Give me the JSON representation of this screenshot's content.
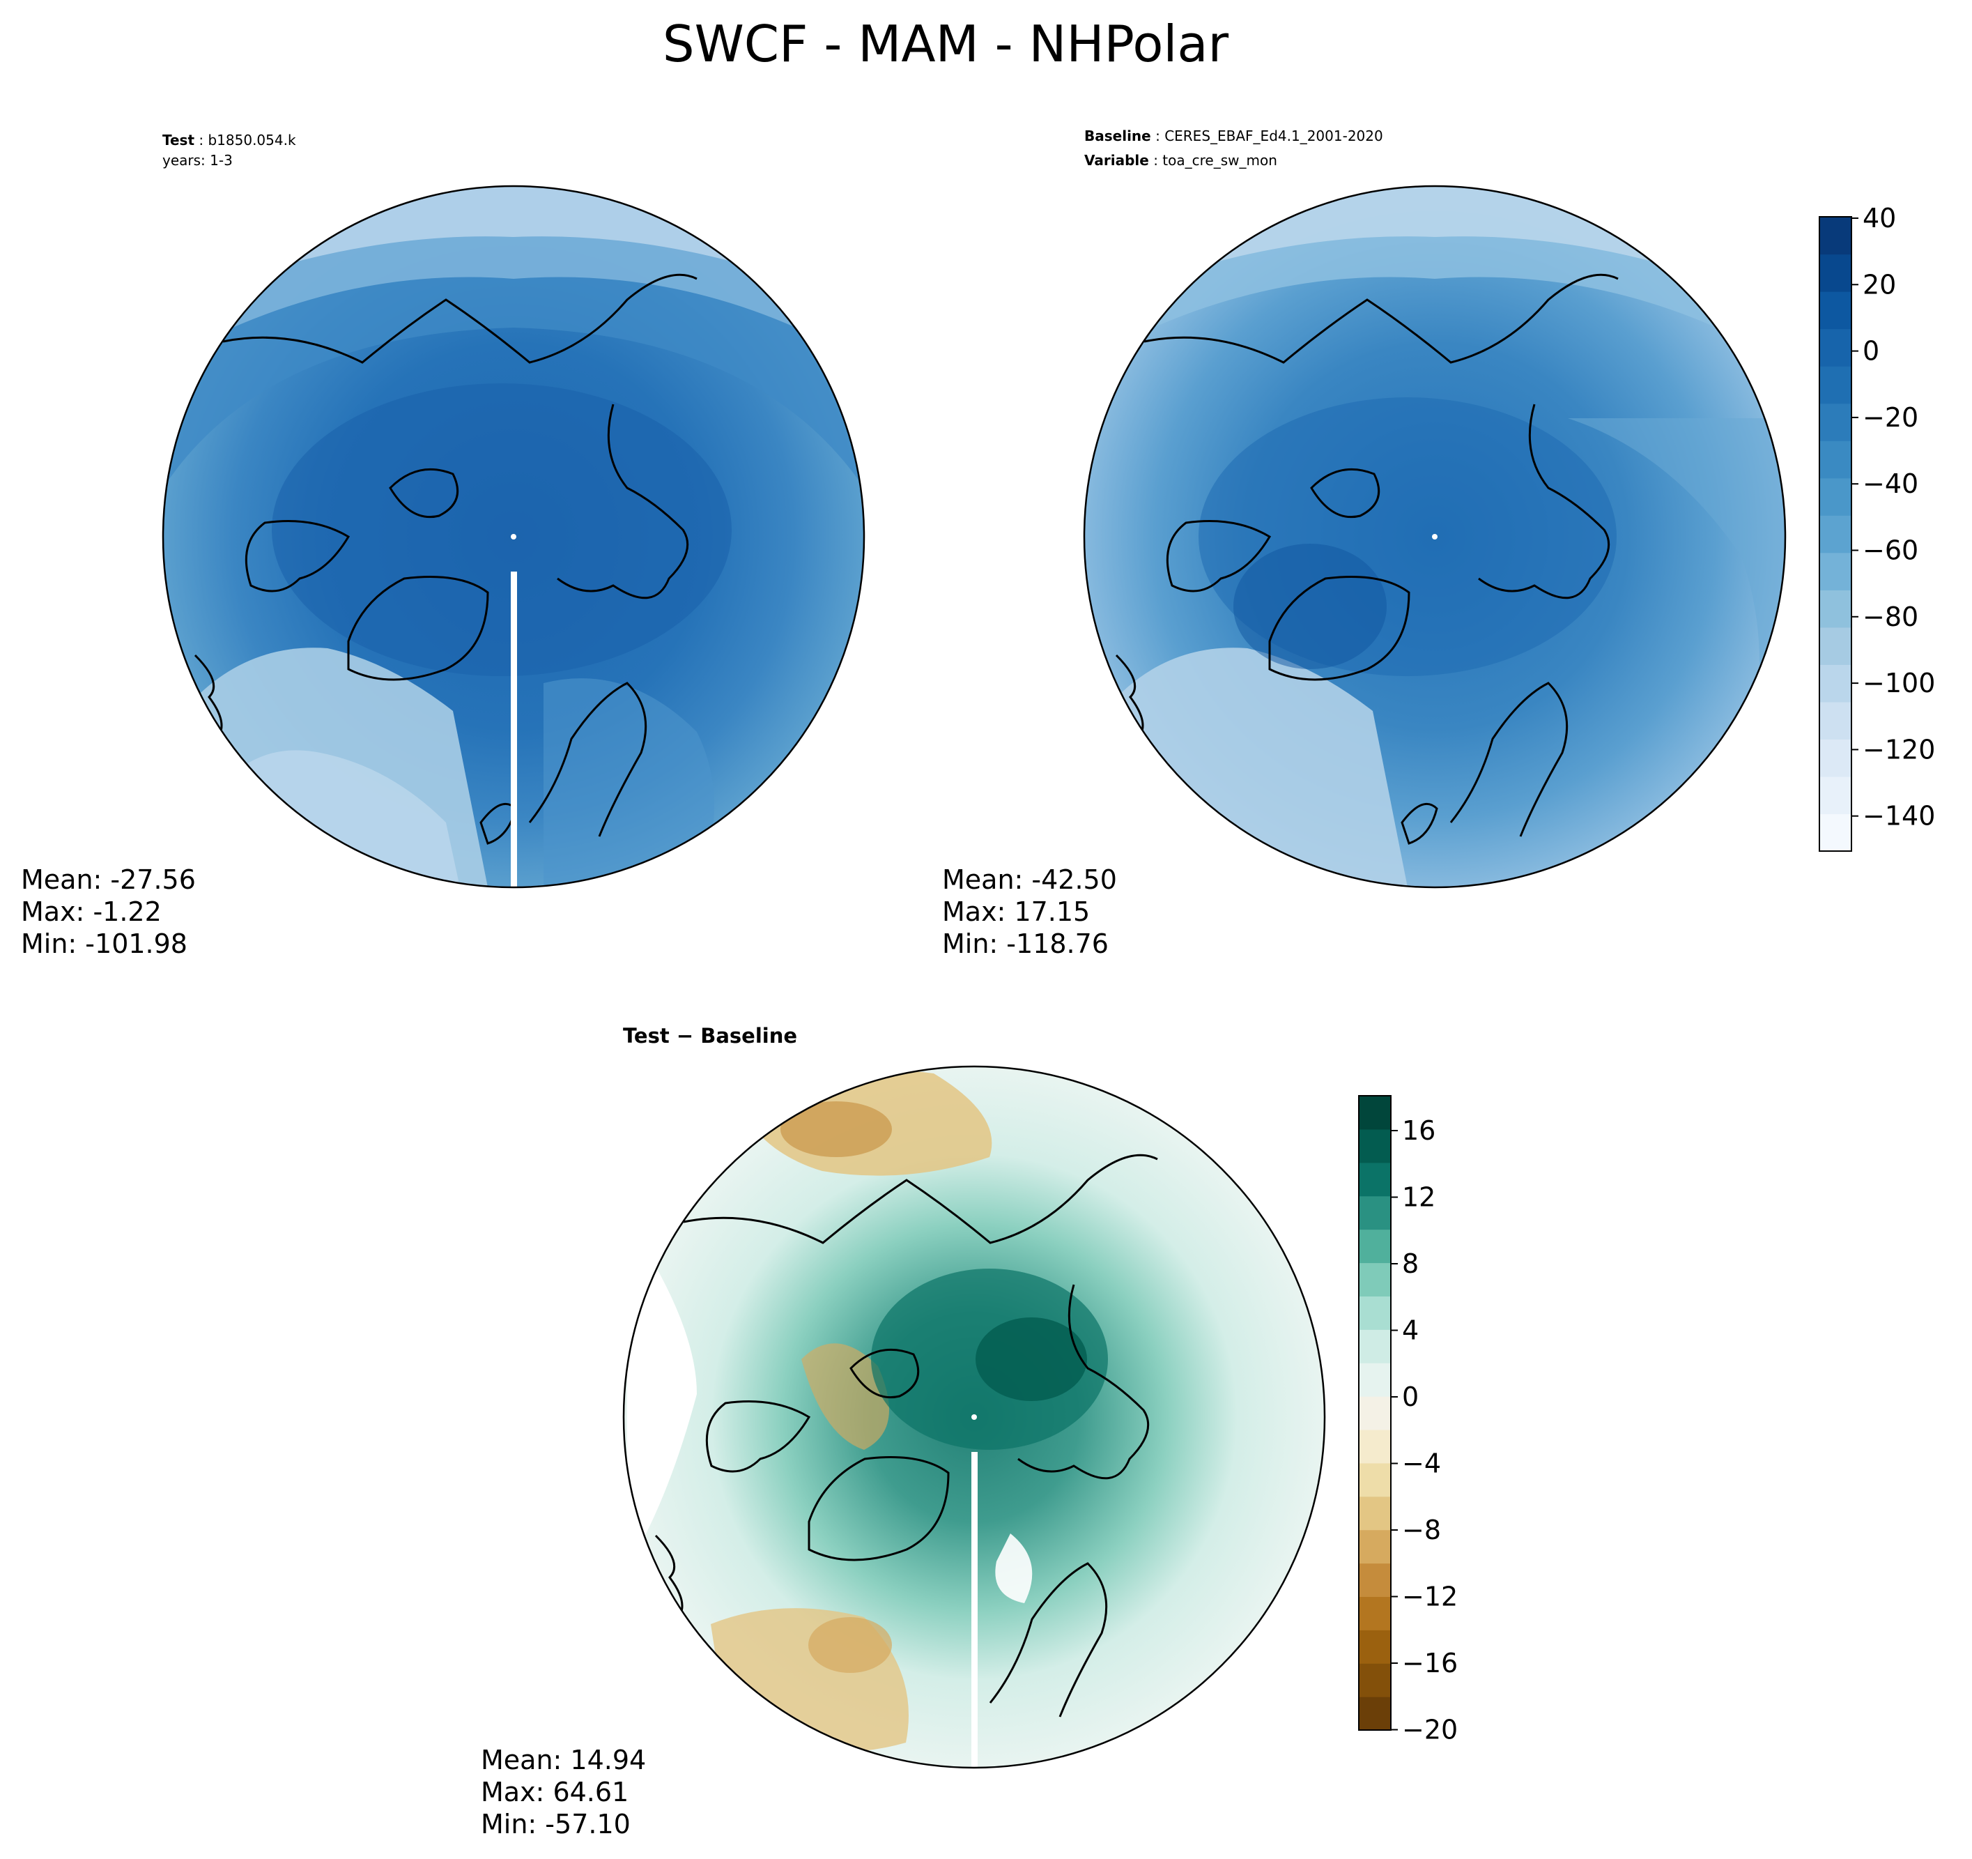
{
  "figure": {
    "title": "SWCF - MAM - NHPolar"
  },
  "panels": {
    "test": {
      "label_key": "Test",
      "label_value": "b1850.054.k",
      "years": "years: 1-3",
      "stats": {
        "mean": "Mean: -27.56",
        "max": "Max: -1.22",
        "min": "Min: -101.98"
      }
    },
    "baseline": {
      "label_key": "Baseline",
      "label_value": "CERES_EBAF_Ed4.1_2001-2020",
      "variable_key": "Variable",
      "variable_value": "toa_cre_sw_mon",
      "stats": {
        "mean": "Mean: -42.50",
        "max": "Max: 17.15",
        "min": "Min: -118.76"
      }
    },
    "diff": {
      "title": "Test − Baseline",
      "stats": {
        "mean": "Mean: 14.94",
        "max": "Max: 64.61",
        "min": "Min: -57.10"
      }
    }
  },
  "colorbars": {
    "main": {
      "ticks": [
        "40",
        "20",
        "0",
        "−20",
        "−40",
        "−60",
        "−80",
        "−100",
        "−120",
        "−140"
      ],
      "colors": [
        "#f4f9fe",
        "#e8f1fa",
        "#dce9f6",
        "#cde0f1",
        "#bad6eb",
        "#a6cbe3",
        "#8fc1dd",
        "#74b2d8",
        "#5ca3d0",
        "#4a97c9",
        "#3a8ac2",
        "#2c7cba",
        "#1f6fb2",
        "#1764ab",
        "#0d58a1",
        "#08488e",
        "#083a7a"
      ]
    },
    "diff": {
      "ticks": [
        "16",
        "12",
        "8",
        "4",
        "0",
        "−4",
        "−8",
        "−12",
        "−16",
        "−20"
      ],
      "colors": [
        "#6b3f08",
        "#83500a",
        "#9b610f",
        "#b37620",
        "#c58c3c",
        "#d6aa5f",
        "#e3c684",
        "#eedda9",
        "#f5ebcd",
        "#f4f1e6",
        "#e6f3ef",
        "#cfece5",
        "#a9ded2",
        "#7fcbb9",
        "#50b09c",
        "#2a9182",
        "#0b7367",
        "#035c50",
        "#01463b"
      ]
    }
  },
  "chart_data": [
    {
      "type": "heatmap",
      "panel": "Test",
      "title": "Test: b1850.054.k",
      "subtitle": "years: 1-3",
      "colorbar_range": [
        -150,
        40
      ],
      "colorbar_ticks": [
        40,
        20,
        0,
        -20,
        -40,
        -60,
        -80,
        -100,
        -120,
        -140
      ],
      "mean": -27.56,
      "max": -1.22,
      "min": -101.98
    },
    {
      "type": "heatmap",
      "panel": "Baseline",
      "title": "Baseline: CERES_EBAF_Ed4.1_2001-2020",
      "subtitle": "Variable: toa_cre_sw_mon",
      "colorbar_range": [
        -150,
        40
      ],
      "colorbar_ticks": [
        40,
        20,
        0,
        -20,
        -40,
        -60,
        -80,
        -100,
        -120,
        -140
      ],
      "mean": -42.5,
      "max": 17.15,
      "min": -118.76
    },
    {
      "type": "heatmap",
      "panel": "Test - Baseline",
      "title": "Test − Baseline",
      "colorbar_range": [
        -20,
        18
      ],
      "colorbar_ticks": [
        16,
        12,
        8,
        4,
        0,
        -4,
        -8,
        -12,
        -16,
        -20
      ],
      "mean": 14.94,
      "max": 64.61,
      "min": -57.1
    }
  ]
}
